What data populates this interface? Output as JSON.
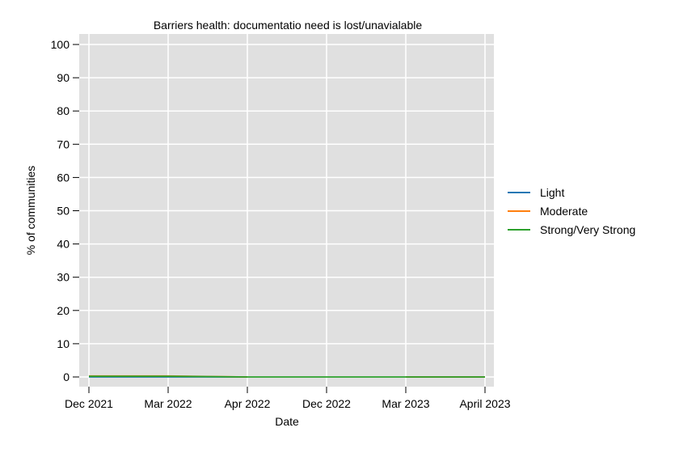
{
  "chart_data": {
    "type": "line",
    "title": "Barriers health: documentatio need is lost/unavialable",
    "xlabel": "Date",
    "ylabel": "% of communities",
    "categories": [
      "Dec 2021",
      "Mar 2022",
      "Apr 2022",
      "Dec 2022",
      "Mar 2023",
      "April 2023"
    ],
    "ylim": [
      0,
      100
    ],
    "yticks": [
      0,
      10,
      20,
      30,
      40,
      50,
      60,
      70,
      80,
      90,
      100
    ],
    "grid": true,
    "legend_position": "right",
    "series": [
      {
        "name": "Light",
        "color": "#1f77b4",
        "values": [
          0,
          0,
          0,
          null,
          0,
          0
        ]
      },
      {
        "name": "Moderate",
        "color": "#ff7f0e",
        "values": [
          0.3,
          0.3,
          0,
          null,
          0,
          0
        ]
      },
      {
        "name": "Strong/Very Strong",
        "color": "#2ca02c",
        "values": [
          0.2,
          0.2,
          0,
          0,
          0,
          0
        ]
      }
    ]
  }
}
